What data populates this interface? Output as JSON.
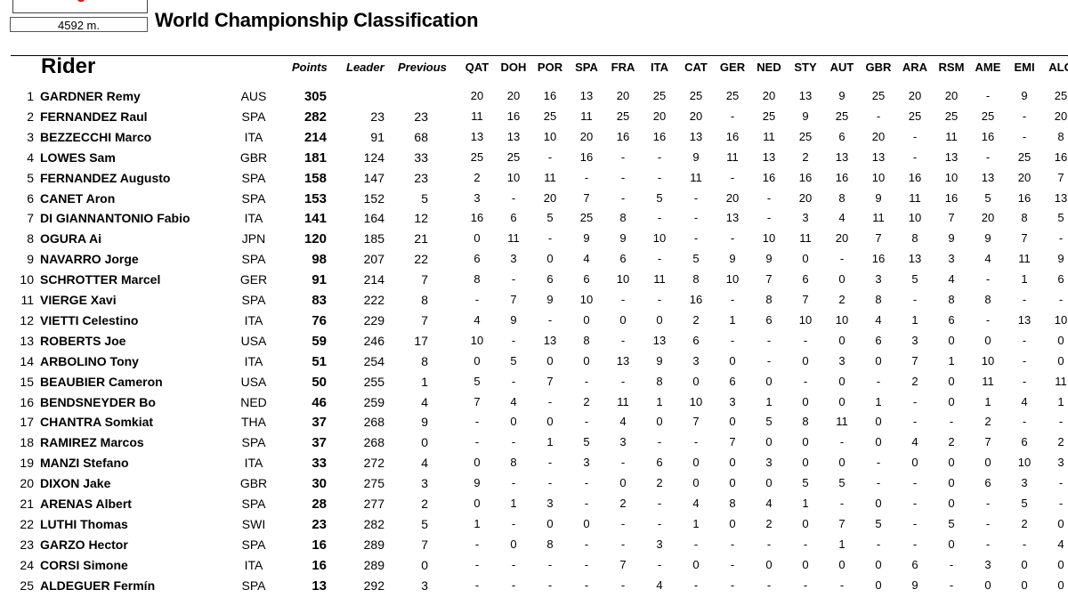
{
  "header": {
    "distance": "4592 m.",
    "title": "World Championship Classification"
  },
  "columns": {
    "rider": "Rider",
    "points": "Points",
    "leader": "Leader",
    "previous": "Previous",
    "races": [
      "QAT",
      "DOH",
      "POR",
      "SPA",
      "FRA",
      "ITA",
      "CAT",
      "GER",
      "NED",
      "STY",
      "AUT",
      "GBR",
      "ARA",
      "RSM",
      "AME",
      "EMI",
      "ALG"
    ]
  },
  "rows": [
    {
      "pos": "1",
      "name": "GARDNER Remy",
      "nat": "AUS",
      "points": "305",
      "leader": "",
      "previous": "",
      "races": [
        "20",
        "20",
        "16",
        "13",
        "20",
        "25",
        "25",
        "25",
        "20",
        "13",
        "9",
        "25",
        "20",
        "20",
        "-",
        "9",
        "25"
      ]
    },
    {
      "pos": "2",
      "name": "FERNANDEZ Raul",
      "nat": "SPA",
      "points": "282",
      "leader": "23",
      "previous": "23",
      "races": [
        "11",
        "16",
        "25",
        "11",
        "25",
        "20",
        "20",
        "-",
        "25",
        "9",
        "25",
        "-",
        "25",
        "25",
        "25",
        "-",
        "20"
      ]
    },
    {
      "pos": "3",
      "name": "BEZZECCHI Marco",
      "nat": "ITA",
      "points": "214",
      "leader": "91",
      "previous": "68",
      "races": [
        "13",
        "13",
        "10",
        "20",
        "16",
        "16",
        "13",
        "16",
        "11",
        "25",
        "6",
        "20",
        "-",
        "11",
        "16",
        "-",
        "8"
      ]
    },
    {
      "pos": "4",
      "name": "LOWES Sam",
      "nat": "GBR",
      "points": "181",
      "leader": "124",
      "previous": "33",
      "races": [
        "25",
        "25",
        "-",
        "16",
        "-",
        "-",
        "9",
        "11",
        "13",
        "2",
        "13",
        "13",
        "-",
        "13",
        "-",
        "25",
        "16"
      ]
    },
    {
      "pos": "5",
      "name": "FERNANDEZ Augusto",
      "nat": "SPA",
      "points": "158",
      "leader": "147",
      "previous": "23",
      "races": [
        "2",
        "10",
        "11",
        "-",
        "-",
        "-",
        "11",
        "-",
        "16",
        "16",
        "16",
        "10",
        "16",
        "10",
        "13",
        "20",
        "7"
      ]
    },
    {
      "pos": "6",
      "name": "CANET Aron",
      "nat": "SPA",
      "points": "153",
      "leader": "152",
      "previous": "5",
      "races": [
        "3",
        "-",
        "20",
        "7",
        "-",
        "5",
        "-",
        "20",
        "-",
        "20",
        "8",
        "9",
        "11",
        "16",
        "5",
        "16",
        "13"
      ]
    },
    {
      "pos": "7",
      "name": "DI GIANNANTONIO Fabio",
      "nat": "ITA",
      "points": "141",
      "leader": "164",
      "previous": "12",
      "races": [
        "16",
        "6",
        "5",
        "25",
        "8",
        "-",
        "-",
        "13",
        "-",
        "3",
        "4",
        "11",
        "10",
        "7",
        "20",
        "8",
        "5"
      ]
    },
    {
      "pos": "8",
      "name": "OGURA Ai",
      "nat": "JPN",
      "points": "120",
      "leader": "185",
      "previous": "21",
      "races": [
        "0",
        "11",
        "-",
        "9",
        "9",
        "10",
        "-",
        "-",
        "10",
        "11",
        "20",
        "7",
        "8",
        "9",
        "9",
        "7",
        "-"
      ]
    },
    {
      "pos": "9",
      "name": "NAVARRO Jorge",
      "nat": "SPA",
      "points": "98",
      "leader": "207",
      "previous": "22",
      "races": [
        "6",
        "3",
        "0",
        "4",
        "6",
        "-",
        "5",
        "9",
        "9",
        "0",
        "-",
        "16",
        "13",
        "3",
        "4",
        "11",
        "9"
      ]
    },
    {
      "pos": "10",
      "name": "SCHROTTER Marcel",
      "nat": "GER",
      "points": "91",
      "leader": "214",
      "previous": "7",
      "races": [
        "8",
        "-",
        "6",
        "6",
        "10",
        "11",
        "8",
        "10",
        "7",
        "6",
        "0",
        "3",
        "5",
        "4",
        "-",
        "1",
        "6"
      ]
    },
    {
      "pos": "11",
      "name": "VIERGE Xavi",
      "nat": "SPA",
      "points": "83",
      "leader": "222",
      "previous": "8",
      "races": [
        "-",
        "7",
        "9",
        "10",
        "-",
        "-",
        "16",
        "-",
        "8",
        "7",
        "2",
        "8",
        "-",
        "8",
        "8",
        "-",
        "-"
      ]
    },
    {
      "pos": "12",
      "name": "VIETTI Celestino",
      "nat": "ITA",
      "points": "76",
      "leader": "229",
      "previous": "7",
      "races": [
        "4",
        "9",
        "-",
        "0",
        "0",
        "0",
        "2",
        "1",
        "6",
        "10",
        "10",
        "4",
        "1",
        "6",
        "-",
        "13",
        "10"
      ]
    },
    {
      "pos": "13",
      "name": "ROBERTS Joe",
      "nat": "USA",
      "points": "59",
      "leader": "246",
      "previous": "17",
      "races": [
        "10",
        "-",
        "13",
        "8",
        "-",
        "13",
        "6",
        "-",
        "-",
        "-",
        "0",
        "6",
        "3",
        "0",
        "0",
        "-",
        "0"
      ]
    },
    {
      "pos": "14",
      "name": "ARBOLINO Tony",
      "nat": "ITA",
      "points": "51",
      "leader": "254",
      "previous": "8",
      "races": [
        "0",
        "5",
        "0",
        "0",
        "13",
        "9",
        "3",
        "0",
        "-",
        "0",
        "3",
        "0",
        "7",
        "1",
        "10",
        "-",
        "0"
      ]
    },
    {
      "pos": "15",
      "name": "BEAUBIER Cameron",
      "nat": "USA",
      "points": "50",
      "leader": "255",
      "previous": "1",
      "races": [
        "5",
        "-",
        "7",
        "-",
        "-",
        "8",
        "0",
        "6",
        "0",
        "-",
        "0",
        "-",
        "2",
        "0",
        "11",
        "-",
        "11"
      ]
    },
    {
      "pos": "16",
      "name": "BENDSNEYDER Bo",
      "nat": "NED",
      "points": "46",
      "leader": "259",
      "previous": "4",
      "races": [
        "7",
        "4",
        "-",
        "2",
        "11",
        "1",
        "10",
        "3",
        "1",
        "0",
        "0",
        "1",
        "-",
        "0",
        "1",
        "4",
        "1"
      ]
    },
    {
      "pos": "17",
      "name": "CHANTRA Somkiat",
      "nat": "THA",
      "points": "37",
      "leader": "268",
      "previous": "9",
      "races": [
        "-",
        "0",
        "0",
        "-",
        "4",
        "0",
        "7",
        "0",
        "5",
        "8",
        "11",
        "0",
        "-",
        "-",
        "2",
        "-",
        "-"
      ]
    },
    {
      "pos": "18",
      "name": "RAMIREZ Marcos",
      "nat": "SPA",
      "points": "37",
      "leader": "268",
      "previous": "0",
      "races": [
        "-",
        "-",
        "1",
        "5",
        "3",
        "-",
        "-",
        "7",
        "0",
        "0",
        "-",
        "0",
        "4",
        "2",
        "7",
        "6",
        "2"
      ]
    },
    {
      "pos": "19",
      "name": "MANZI Stefano",
      "nat": "ITA",
      "points": "33",
      "leader": "272",
      "previous": "4",
      "races": [
        "0",
        "8",
        "-",
        "3",
        "-",
        "6",
        "0",
        "0",
        "3",
        "0",
        "0",
        "-",
        "0",
        "0",
        "0",
        "10",
        "3"
      ]
    },
    {
      "pos": "20",
      "name": "DIXON Jake",
      "nat": "GBR",
      "points": "30",
      "leader": "275",
      "previous": "3",
      "races": [
        "9",
        "-",
        "-",
        "-",
        "0",
        "2",
        "0",
        "0",
        "0",
        "5",
        "5",
        "-",
        "-",
        "0",
        "6",
        "3",
        "-"
      ]
    },
    {
      "pos": "21",
      "name": "ARENAS Albert",
      "nat": "SPA",
      "points": "28",
      "leader": "277",
      "previous": "2",
      "races": [
        "0",
        "1",
        "3",
        "-",
        "2",
        "-",
        "4",
        "8",
        "4",
        "1",
        "-",
        "0",
        "-",
        "0",
        "-",
        "5",
        "-"
      ]
    },
    {
      "pos": "22",
      "name": "LUTHI Thomas",
      "nat": "SWI",
      "points": "23",
      "leader": "282",
      "previous": "5",
      "races": [
        "1",
        "-",
        "0",
        "0",
        "-",
        "-",
        "1",
        "0",
        "2",
        "0",
        "7",
        "5",
        "-",
        "5",
        "-",
        "2",
        "0"
      ]
    },
    {
      "pos": "23",
      "name": "GARZO Hector",
      "nat": "SPA",
      "points": "16",
      "leader": "289",
      "previous": "7",
      "races": [
        "-",
        "0",
        "8",
        "-",
        "-",
        "3",
        "-",
        "-",
        "-",
        "-",
        "1",
        "-",
        "-",
        "0",
        "-",
        "-",
        "4"
      ]
    },
    {
      "pos": "24",
      "name": "CORSI Simone",
      "nat": "ITA",
      "points": "16",
      "leader": "289",
      "previous": "0",
      "races": [
        "-",
        "-",
        "-",
        "-",
        "7",
        "-",
        "0",
        "-",
        "0",
        "0",
        "0",
        "0",
        "6",
        "-",
        "3",
        "0",
        "0"
      ]
    },
    {
      "pos": "25",
      "name": "ALDEGUER Fermín",
      "nat": "SPA",
      "points": "13",
      "leader": "292",
      "previous": "3",
      "races": [
        "-",
        "-",
        "-",
        "-",
        "-",
        "4",
        "-",
        "-",
        "-",
        "-",
        "-",
        "0",
        "9",
        "-",
        "0",
        "0",
        "0"
      ]
    }
  ]
}
